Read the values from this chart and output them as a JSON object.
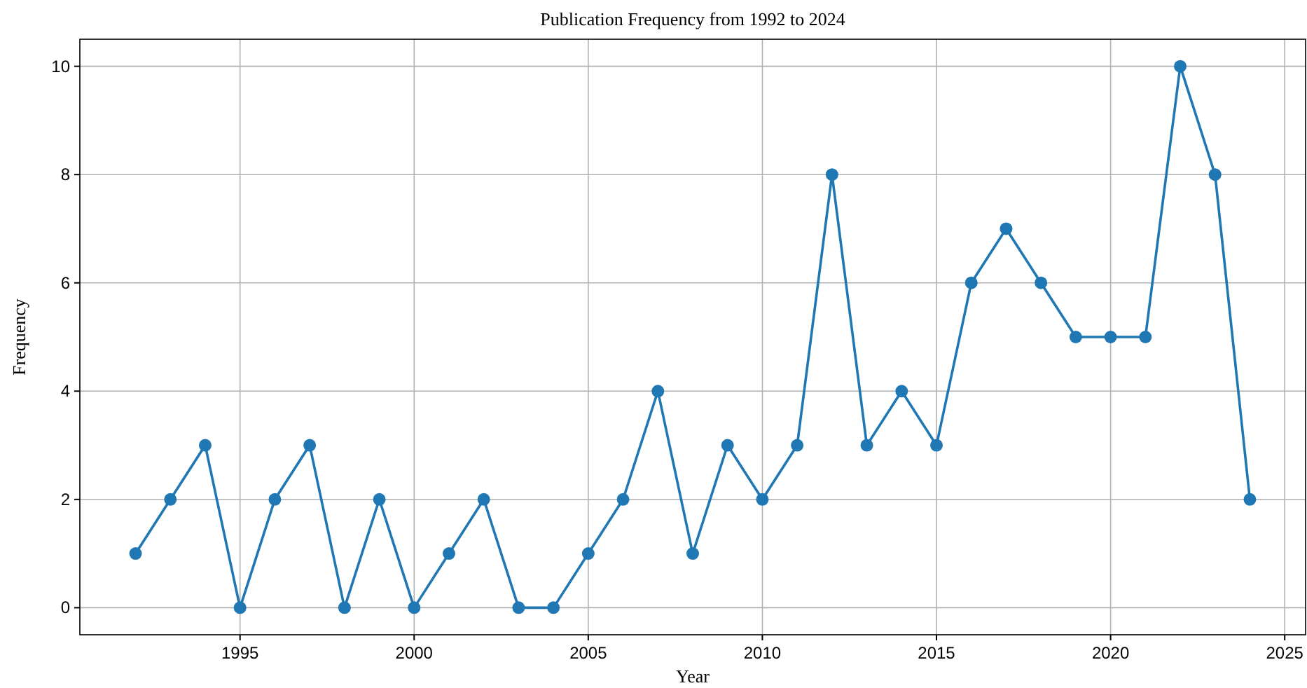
{
  "chart_data": {
    "type": "line",
    "title": "Publication Frequency from 1992 to 2024",
    "xlabel": "Year",
    "ylabel": "Frequency",
    "x": [
      1992,
      1993,
      1994,
      1995,
      1996,
      1997,
      1998,
      1999,
      2000,
      2001,
      2002,
      2003,
      2004,
      2005,
      2006,
      2007,
      2008,
      2009,
      2010,
      2011,
      2012,
      2013,
      2014,
      2015,
      2016,
      2017,
      2018,
      2019,
      2020,
      2021,
      2022,
      2023,
      2024
    ],
    "series": [
      {
        "color": "#1f77b4",
        "values": [
          1,
          2,
          3,
          0,
          2,
          3,
          0,
          2,
          0,
          1,
          2,
          0,
          0,
          1,
          2,
          4,
          1,
          3,
          2,
          3,
          8,
          3,
          4,
          3,
          6,
          7,
          6,
          5,
          5,
          5,
          10,
          8,
          2
        ]
      }
    ],
    "xlim": [
      1990.4,
      2025.6
    ],
    "xticks": [
      1995,
      2000,
      2005,
      2010,
      2015,
      2020,
      2025
    ],
    "ylim": [
      -0.5,
      10.5
    ],
    "yticks": [
      0,
      2,
      4,
      6,
      8,
      10
    ],
    "grid": true,
    "marker": "circle",
    "line_style": "solid"
  }
}
